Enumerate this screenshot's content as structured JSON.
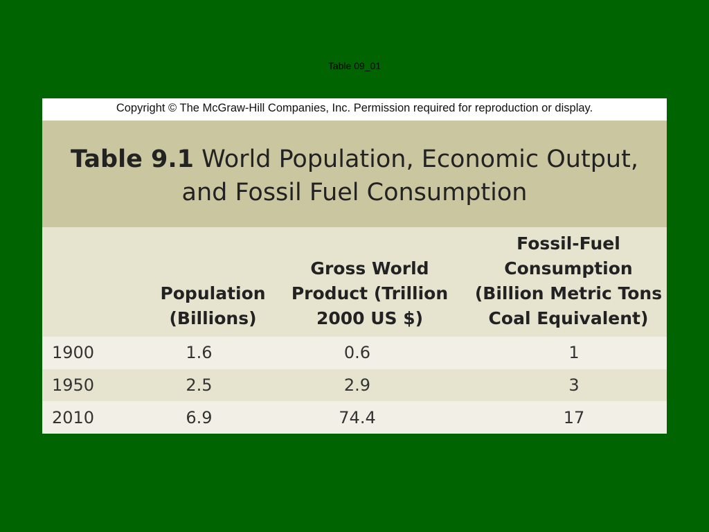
{
  "slide_title": "Table 09_01",
  "copyright": "Copyright © The McGraw-Hill Companies, Inc. Permission required for reproduction or display.",
  "table": {
    "number": "Table 9.1",
    "title_line1": "World Population, Economic Output,",
    "title_line2": "and Fossil Fuel Consumption",
    "headers": [
      {
        "lines": [
          ""
        ]
      },
      {
        "lines": [
          "Population",
          "(Billions)"
        ]
      },
      {
        "lines": [
          "Gross World",
          "Product (Trillion",
          "2000 US $)"
        ]
      },
      {
        "lines": [
          "Fossil-Fuel",
          "Consumption",
          "(Billion Metric Tons",
          "Coal Equivalent)"
        ]
      }
    ],
    "rows": [
      [
        "1900",
        "1.6",
        "0.6",
        "1"
      ],
      [
        "1950",
        "2.5",
        "2.9",
        "3"
      ],
      [
        "2010",
        "6.9",
        "74.4",
        "17"
      ]
    ]
  },
  "colors": {
    "background": "#006400",
    "title_band": "#c9c6a0",
    "header_band": "#e6e4cf",
    "row_light": "#f2f0e6",
    "row_dark": "#e6e4cf"
  }
}
